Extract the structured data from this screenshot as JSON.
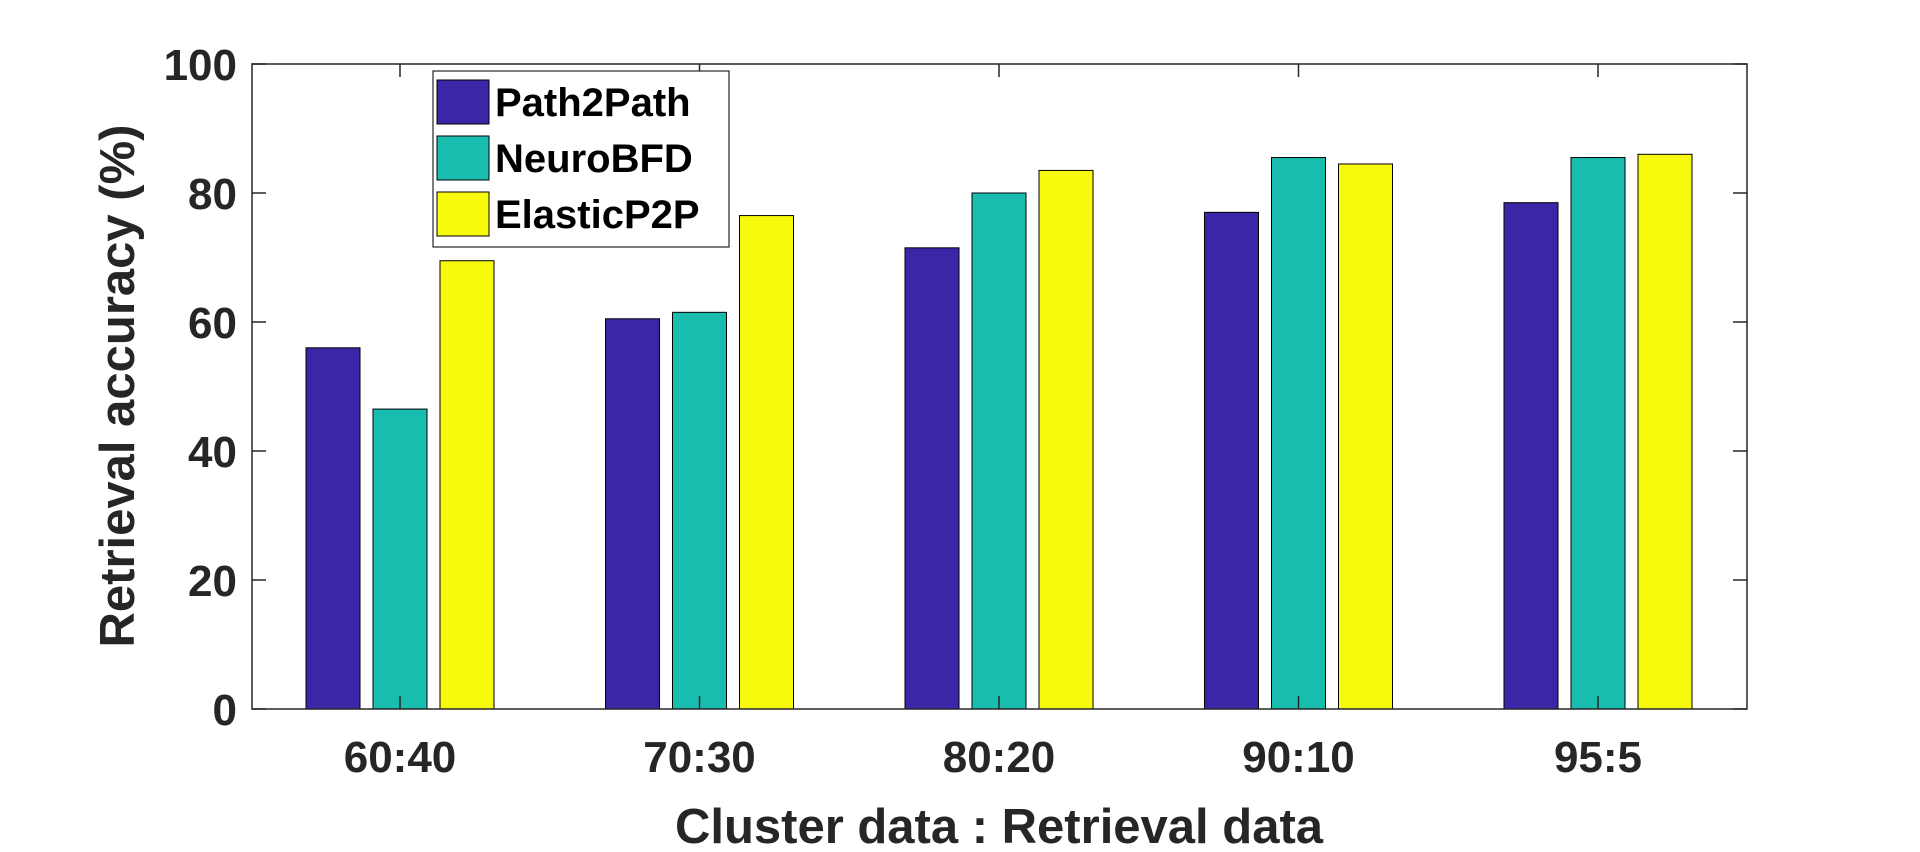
{
  "chart_data": {
    "type": "bar",
    "categories": [
      "60:40",
      "70:30",
      "80:20",
      "90:10",
      "95:5"
    ],
    "series": [
      {
        "name": "Path2Path",
        "color": "#3B26A8",
        "values": [
          56,
          60.5,
          71.5,
          77,
          78.5
        ]
      },
      {
        "name": "NeuroBFD",
        "color": "#18BDB0",
        "values": [
          46.5,
          61.5,
          80,
          85.5,
          85.5
        ]
      },
      {
        "name": "ElasticP2P",
        "color": "#F8FA0E",
        "values": [
          69.5,
          76.5,
          83.5,
          84.5,
          86
        ]
      }
    ],
    "xlabel": "Cluster data : Retrieval data",
    "ylabel": "Retrieval accuracy (%)",
    "ylim": [
      0,
      100
    ],
    "yticks": [
      0,
      20,
      40,
      60,
      80,
      100
    ],
    "grid": false,
    "legend_position": "top-left"
  }
}
